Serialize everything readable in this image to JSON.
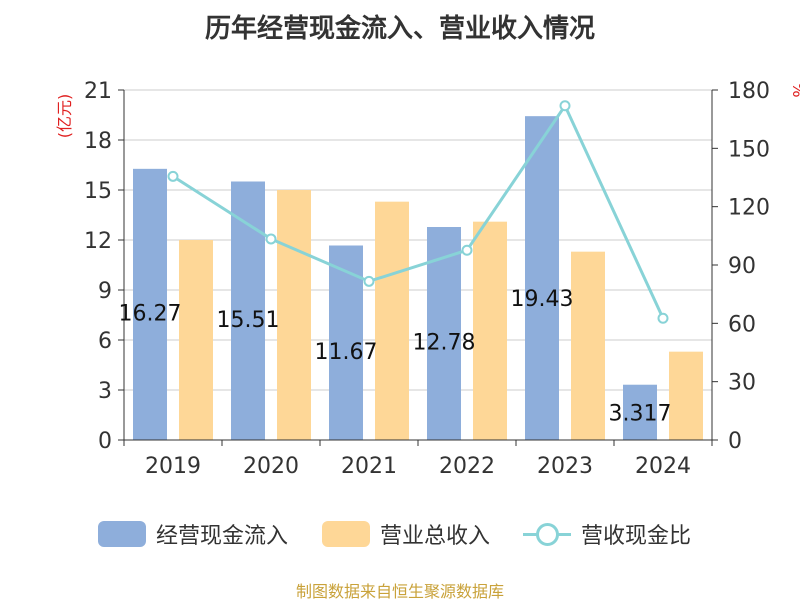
{
  "chart_data": {
    "type": "bar",
    "title": "历年经营现金流入、营业收入情况",
    "categories": [
      "2019",
      "2020",
      "2021",
      "2022",
      "2023",
      "2024"
    ],
    "series": [
      {
        "name": "经营现金流入",
        "type": "bar",
        "axis": "left",
        "color": "#8eaedb",
        "values": [
          16.27,
          15.51,
          11.67,
          12.78,
          19.43,
          3.317
        ],
        "labels": [
          "16.27",
          "15.51",
          "11.67",
          "12.78",
          "19.43",
          "3.317"
        ]
      },
      {
        "name": "营业总收入",
        "type": "bar",
        "axis": "left",
        "color": "#fed797",
        "values": [
          12.0,
          15.0,
          14.3,
          13.1,
          11.3,
          5.3
        ]
      },
      {
        "name": "营收现金比",
        "type": "line",
        "axis": "right",
        "color": "#88d3d7",
        "values": [
          135.6,
          103.4,
          81.6,
          97.6,
          171.9,
          62.6
        ]
      }
    ],
    "ylabel_left": "(亿元)",
    "ylabel_right": "%",
    "ylim_left": [
      0,
      21
    ],
    "ylim_right": [
      0,
      180
    ],
    "yticks_left": [
      "0",
      "3",
      "6",
      "9",
      "12",
      "15",
      "18",
      "21"
    ],
    "yticks_right": [
      "0",
      "30",
      "60",
      "90",
      "120",
      "150",
      "180"
    ],
    "grid": true,
    "legend_position": "bottom"
  },
  "source_note": "制图数据来自恒生聚源数据库"
}
